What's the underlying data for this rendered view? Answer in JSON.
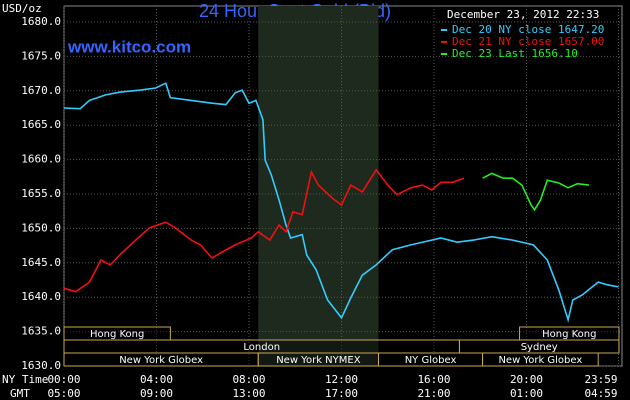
{
  "chart_data": {
    "type": "line",
    "title": "24 Hour Spot Gold (Bid)",
    "timestamp": "December 23, 2012 22:33",
    "source": "www.kitco.com",
    "ylabel": "USD/oz",
    "xlabel": "NY Time",
    "x2label": "GMT",
    "xlim": [
      0,
      24
    ],
    "ylim": [
      1630,
      1680
    ],
    "grid": true,
    "yticks": [
      {
        "value": 1630,
        "label": "1630.0"
      },
      {
        "value": 1635,
        "label": "1635.0"
      },
      {
        "value": 1640,
        "label": "1640.0"
      },
      {
        "value": 1645,
        "label": "1645.0"
      },
      {
        "value": 1650,
        "label": "1650.0"
      },
      {
        "value": 1655,
        "label": "1655.0"
      },
      {
        "value": 1660,
        "label": "1660.0"
      },
      {
        "value": 1665,
        "label": "1665.0"
      },
      {
        "value": 1670,
        "label": "1670.0"
      },
      {
        "value": 1675,
        "label": "1675.0"
      },
      {
        "value": 1680,
        "label": "1680.0"
      }
    ],
    "xticks": [
      {
        "value": 0,
        "label": "00:00"
      },
      {
        "value": 4,
        "label": "04:00"
      },
      {
        "value": 8,
        "label": "08:00"
      },
      {
        "value": 12,
        "label": "12:00"
      },
      {
        "value": 16,
        "label": "16:00"
      },
      {
        "value": 20,
        "label": "20:00"
      },
      {
        "value": 23.98,
        "label": "23:59"
      }
    ],
    "x2ticks": [
      {
        "value": 0,
        "label": "05:00"
      },
      {
        "value": 4,
        "label": "09:00"
      },
      {
        "value": 8,
        "label": "13:00"
      },
      {
        "value": 12,
        "label": "17:00"
      },
      {
        "value": 16,
        "label": "21:00"
      },
      {
        "value": 20,
        "label": "01:00"
      },
      {
        "value": 23.98,
        "label": "04:59"
      }
    ],
    "highlight": [
      8.4,
      13.6
    ],
    "sessions": [
      [
        {
          "name": "Hong Kong",
          "start": 0,
          "end": 4.6
        },
        {
          "name": "Hong Kong",
          "start": 19.7,
          "end": 24
        }
      ],
      [
        {
          "name": "London",
          "start": 0,
          "end": 17.1
        },
        {
          "name": "Sydney",
          "start": 17.1,
          "end": 24
        }
      ],
      [
        {
          "name": "New York Globex",
          "start": 0,
          "end": 8.4
        },
        {
          "name": "New York NYMEX",
          "start": 8.4,
          "end": 13.6
        },
        {
          "name": "NY Globex",
          "start": 13.6,
          "end": 18.1
        },
        {
          "name": "New York Globex",
          "start": 18.1,
          "end": 23.1
        }
      ]
    ],
    "series": [
      {
        "name": "Dec 20 NY close 1647.20",
        "color": "#33ccff",
        "x": [
          0,
          0.7,
          1.1,
          1.8,
          2.4,
          3.3,
          3.96,
          4.4,
          4.6,
          5.5,
          6.4,
          7.0,
          7.4,
          7.7,
          8.0,
          8.3,
          8.6,
          8.7,
          8.96,
          9.3,
          9.6,
          9.8,
          10.3,
          10.5,
          10.9,
          11.4,
          12.0,
          12.4,
          12.9,
          13.5,
          14.2,
          15.0,
          15.9,
          16.3,
          17.0,
          17.7,
          18.5,
          19.4,
          20.3,
          20.9,
          21.4,
          21.8,
          22.0,
          22.4,
          23.1,
          23.5,
          23.98
        ],
        "values": [
          1667.5,
          1667.4,
          1668.6,
          1669.4,
          1669.8,
          1670.1,
          1670.4,
          1671.1,
          1669.0,
          1668.6,
          1668.2,
          1668.0,
          1669.7,
          1670.1,
          1668.2,
          1668.6,
          1665.8,
          1659.9,
          1657.8,
          1654.1,
          1650.5,
          1648.6,
          1649.1,
          1646.1,
          1644.0,
          1639.6,
          1637.0,
          1639.9,
          1643.2,
          1644.7,
          1646.9,
          1647.6,
          1648.3,
          1648.6,
          1648.0,
          1648.3,
          1648.8,
          1648.3,
          1647.6,
          1645.4,
          1641.0,
          1636.7,
          1639.6,
          1640.3,
          1642.2,
          1641.8,
          1641.5
        ]
      },
      {
        "name": "Dec 21 NY close 1657.00",
        "color": "#ee1111",
        "x": [
          0,
          0.5,
          1.1,
          1.6,
          2.0,
          2.4,
          3.1,
          3.7,
          4.4,
          4.8,
          5.5,
          5.9,
          6.4,
          6.8,
          7.4,
          8.1,
          8.4,
          8.9,
          9.3,
          9.6,
          9.9,
          10.3,
          10.7,
          11.0,
          11.6,
          12.0,
          12.4,
          12.9,
          13.5,
          14.0,
          14.4,
          15.0,
          15.5,
          15.9,
          16.3,
          16.8,
          17.3
        ],
        "values": [
          1641.3,
          1640.8,
          1642.2,
          1645.4,
          1644.7,
          1646.1,
          1648.3,
          1650.1,
          1650.9,
          1650.1,
          1648.3,
          1647.6,
          1645.7,
          1646.5,
          1647.6,
          1648.6,
          1649.5,
          1648.3,
          1650.5,
          1649.5,
          1652.4,
          1652.0,
          1658.2,
          1656.3,
          1654.4,
          1653.4,
          1656.3,
          1655.3,
          1658.5,
          1656.3,
          1654.9,
          1655.9,
          1656.3,
          1655.6,
          1656.7,
          1656.7,
          1657.3
        ]
      },
      {
        "name": "Dec 23 Last 1656.10",
        "color": "#22ee22",
        "x": [
          18.1,
          18.5,
          19.0,
          19.4,
          19.8,
          20.2,
          20.35,
          20.6,
          20.9,
          21.4,
          21.8,
          22.2,
          22.7
        ],
        "values": [
          1657.3,
          1658.0,
          1657.3,
          1657.3,
          1656.3,
          1653.4,
          1652.7,
          1654.1,
          1657.0,
          1656.6,
          1655.9,
          1656.5,
          1656.3
        ]
      }
    ]
  }
}
